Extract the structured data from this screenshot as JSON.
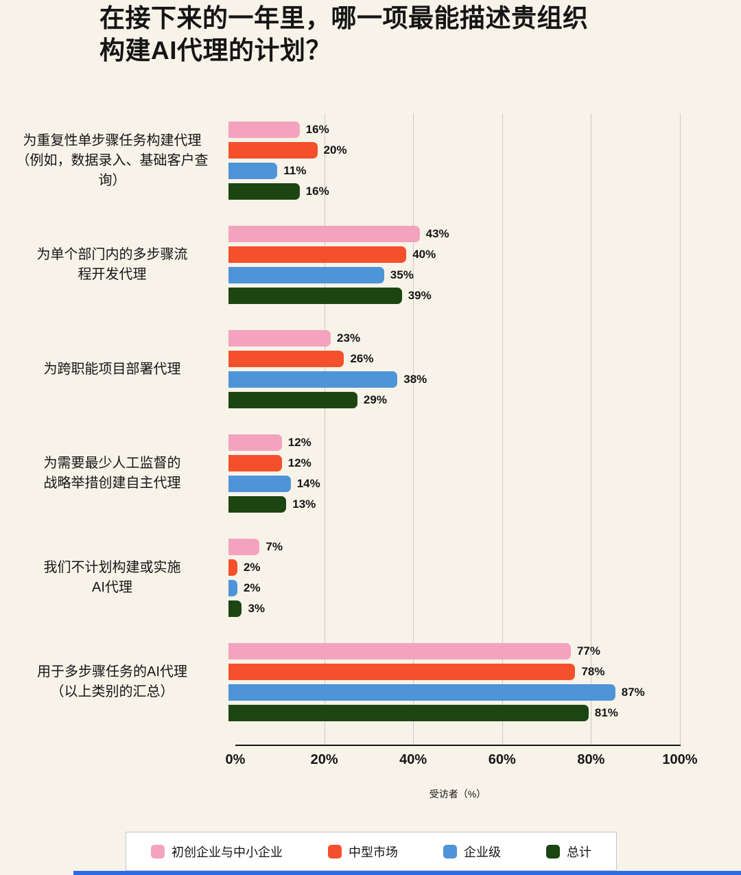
{
  "title": "在接下来的一年里，哪一项最能描述贵组织\n构建AI代理的计划？",
  "colors": {
    "background": "#f7f3e9",
    "grid": "#c9c8c2",
    "axis": "#141414",
    "legend_border": "#c6c6c6",
    "bottom_strip": "#2c6be4"
  },
  "chart_data": {
    "type": "bar",
    "orientation": "horizontal",
    "title": "在接下来的一年里，哪一项最能描述贵组织构建AI代理的计划？",
    "xlabel": "受访者（%）",
    "xlim": [
      0,
      100
    ],
    "xticks": [
      0,
      20,
      40,
      60,
      80,
      100
    ],
    "tick_suffix": "%",
    "value_suffix": "%",
    "grid": true,
    "legend_position": "bottom",
    "categories": [
      "为重复性单步骤任务构建代理\n（例如，数据录入、基础客户查\n询）",
      "为单个部门内的多步骤流\n程开发代理",
      "为跨职能项目部署代理",
      "为需要最少人工监督的\n战略举措创建自主代理",
      "我们不计划构建或实施\nAI代理",
      "用于多步骤任务的AI代理\n（以上类别的汇总）"
    ],
    "series": [
      {
        "name": "初创企业与中小企业",
        "color": "#f4a3bf",
        "values": [
          16,
          43,
          23,
          12,
          7,
          77
        ]
      },
      {
        "name": "中型市场",
        "color": "#f4502b",
        "values": [
          20,
          40,
          26,
          12,
          2,
          78
        ]
      },
      {
        "name": "企业级",
        "color": "#4e94d8",
        "values": [
          11,
          35,
          38,
          14,
          2,
          87
        ]
      },
      {
        "name": "总计",
        "color": "#1c4512",
        "values": [
          16,
          39,
          29,
          13,
          3,
          81
        ]
      }
    ]
  }
}
